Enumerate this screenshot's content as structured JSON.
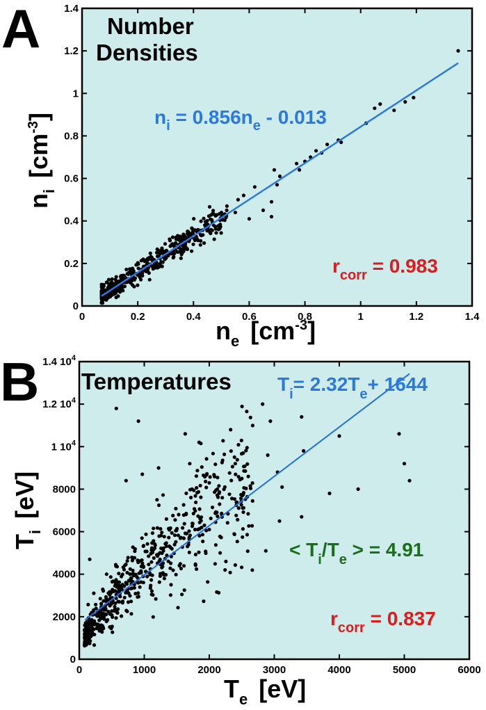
{
  "chart_data": [
    {
      "panel": "A",
      "type": "scatter",
      "title": "Number Densities",
      "xlabel": "n_e [cm^-3]",
      "ylabel": "n_i [cm^-3]",
      "xlim": [
        0,
        1.4
      ],
      "ylim": [
        0,
        1.4
      ],
      "xticks": [
        "0",
        "0.2",
        "0.4",
        "0.6",
        "0.8",
        "1",
        "1.2",
        "1.4"
      ],
      "yticks": [
        "0",
        "0.2",
        "0.4",
        "0.6",
        "0.8",
        "1",
        "1.2",
        "1.4"
      ],
      "fit": {
        "label": "n_i = 0.856n_e - 0.013",
        "slope": 0.856,
        "intercept": -0.013,
        "x_range": [
          0.07,
          1.35
        ],
        "color": "#2a78e4"
      },
      "annotations": [
        {
          "text": "r_corr = 0.983",
          "color": "#e01a1a"
        }
      ],
      "background": "#ceecec",
      "outliers": [
        [
          1.35,
          1.2
        ],
        [
          1.19,
          0.98
        ],
        [
          1.16,
          0.96
        ],
        [
          1.12,
          0.92
        ],
        [
          1.07,
          0.95
        ],
        [
          1.05,
          0.93
        ],
        [
          1.02,
          0.86
        ],
        [
          0.93,
          0.77
        ],
        [
          0.92,
          0.78
        ],
        [
          0.88,
          0.76
        ],
        [
          0.86,
          0.72
        ],
        [
          0.84,
          0.73
        ],
        [
          0.82,
          0.7
        ],
        [
          0.8,
          0.68
        ],
        [
          0.78,
          0.64
        ],
        [
          0.77,
          0.67
        ],
        [
          0.71,
          0.61
        ],
        [
          0.69,
          0.64
        ],
        [
          0.7,
          0.57
        ],
        [
          0.68,
          0.42
        ],
        [
          0.68,
          0.49
        ],
        [
          0.65,
          0.45
        ],
        [
          0.62,
          0.56
        ],
        [
          0.6,
          0.41
        ],
        [
          0.58,
          0.52
        ],
        [
          0.56,
          0.5
        ],
        [
          0.55,
          0.44
        ],
        [
          0.52,
          0.47
        ],
        [
          0.5,
          0.43
        ],
        [
          0.49,
          0.36
        ]
      ]
    },
    {
      "panel": "B",
      "type": "scatter",
      "title": "Temperatures",
      "xlabel": "T_e [eV]",
      "ylabel": "T_i [eV]",
      "xlim": [
        0,
        6000
      ],
      "ylim": [
        0,
        14000
      ],
      "xticks": [
        "0",
        "1000",
        "2000",
        "3000",
        "4000",
        "5000",
        "6000"
      ],
      "yticks": [
        "0",
        "2000",
        "4000",
        "6000",
        "8000",
        "1 10^4",
        "1.2 10^4",
        "1.4 10^4"
      ],
      "fit": {
        "label": "T_i = 2.32T_e + 1644",
        "slope": 2.32,
        "intercept": 1644,
        "x_range": [
          90,
          5080
        ],
        "color": "#1f6fe0"
      },
      "annotations": [
        {
          "text": "< T_i/T_e > = 4.91",
          "color": "#1a6e1a"
        },
        {
          "text": "r_corr = 0.837",
          "color": "#e01a1a"
        }
      ],
      "background": "#ceecec",
      "outliers": [
        [
          570,
          11800
        ],
        [
          910,
          11200
        ],
        [
          1630,
          10600
        ],
        [
          1700,
          9200
        ],
        [
          1220,
          9000
        ],
        [
          970,
          8700
        ],
        [
          720,
          8400
        ],
        [
          2820,
          12000
        ],
        [
          3420,
          11400
        ],
        [
          2940,
          11200
        ],
        [
          3050,
          8800
        ],
        [
          3850,
          7800
        ],
        [
          4000,
          10500
        ],
        [
          4290,
          8000
        ],
        [
          4920,
          10600
        ],
        [
          5000,
          9200
        ],
        [
          5080,
          8400
        ],
        [
          3420,
          6700
        ],
        [
          2870,
          5100
        ],
        [
          3080,
          6500
        ],
        [
          2900,
          9600
        ],
        [
          2600,
          8600
        ],
        [
          2500,
          8500
        ],
        [
          160,
          4700
        ],
        [
          420,
          4000
        ],
        [
          3120,
          8100
        ],
        [
          3450,
          9800
        ],
        [
          2400,
          9200
        ],
        [
          2200,
          7600
        ],
        [
          2000,
          8300
        ]
      ]
    }
  ],
  "panels": {
    "A": {
      "letter": "A",
      "title_line1": "Number",
      "title_line2": "Densities",
      "fit_eq": {
        "lhs": "n",
        "lhs_sub": "i",
        "mid": " = 0.856n",
        "mid_sub": "e",
        "rhs": " - 0.013"
      },
      "rcorr": {
        "r": "r",
        "sub": "corr",
        "val": " = 0.983"
      },
      "xlabel": {
        "main": "n",
        "sub": "e",
        "unit": "[cm",
        "sup": "-3",
        "close": "]"
      },
      "ylabel": {
        "main": "n",
        "sub": "i",
        "unit": "[cm",
        "sup": "-3",
        "close": "]"
      }
    },
    "B": {
      "letter": "B",
      "title": "Temperatures",
      "fit_eq": {
        "lhs": "T",
        "lhs_sub": "i",
        "mid": "= 2.32T",
        "mid_sub": "e",
        "rhs": "+ 1644"
      },
      "ratio": {
        "open": "< T",
        "sub1": "i",
        "mid": "/T",
        "sub2": "e",
        "close": " > = 4.91"
      },
      "rcorr": {
        "r": "r",
        "sub": "corr",
        "val": " = 0.837"
      },
      "xlabel": {
        "main": "T",
        "sub": "e",
        "unit": "[eV]"
      },
      "ylabel": {
        "main": "T",
        "sub": "i",
        "unit": "[eV]"
      }
    }
  }
}
